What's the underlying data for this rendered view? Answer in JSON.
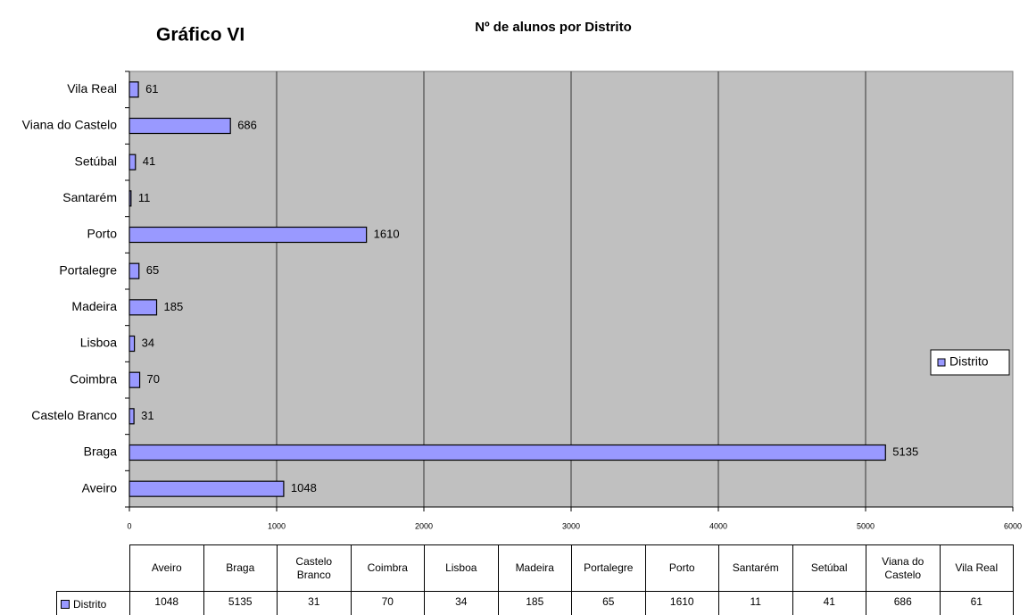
{
  "chart_data": {
    "type": "barh",
    "figure_label": "Gráfico VI",
    "title": "Nº de alunos por Distrito",
    "categories": [
      "Aveiro",
      "Braga",
      "Castelo Branco",
      "Coimbra",
      "Lisboa",
      "Madeira",
      "Portalegre",
      "Porto",
      "Santarém",
      "Setúbal",
      "Viana do Castelo",
      "Vila Real"
    ],
    "series": [
      {
        "name": "Distrito",
        "color": "#9999ff",
        "values": [
          1048,
          5135,
          31,
          70,
          34,
          185,
          65,
          1610,
          11,
          41,
          686,
          61
        ]
      }
    ],
    "xlim": [
      0,
      6000
    ],
    "xticks": [
      0,
      1000,
      2000,
      3000,
      4000,
      5000,
      6000
    ],
    "grid": true,
    "legend": "right",
    "data_table": true
  }
}
